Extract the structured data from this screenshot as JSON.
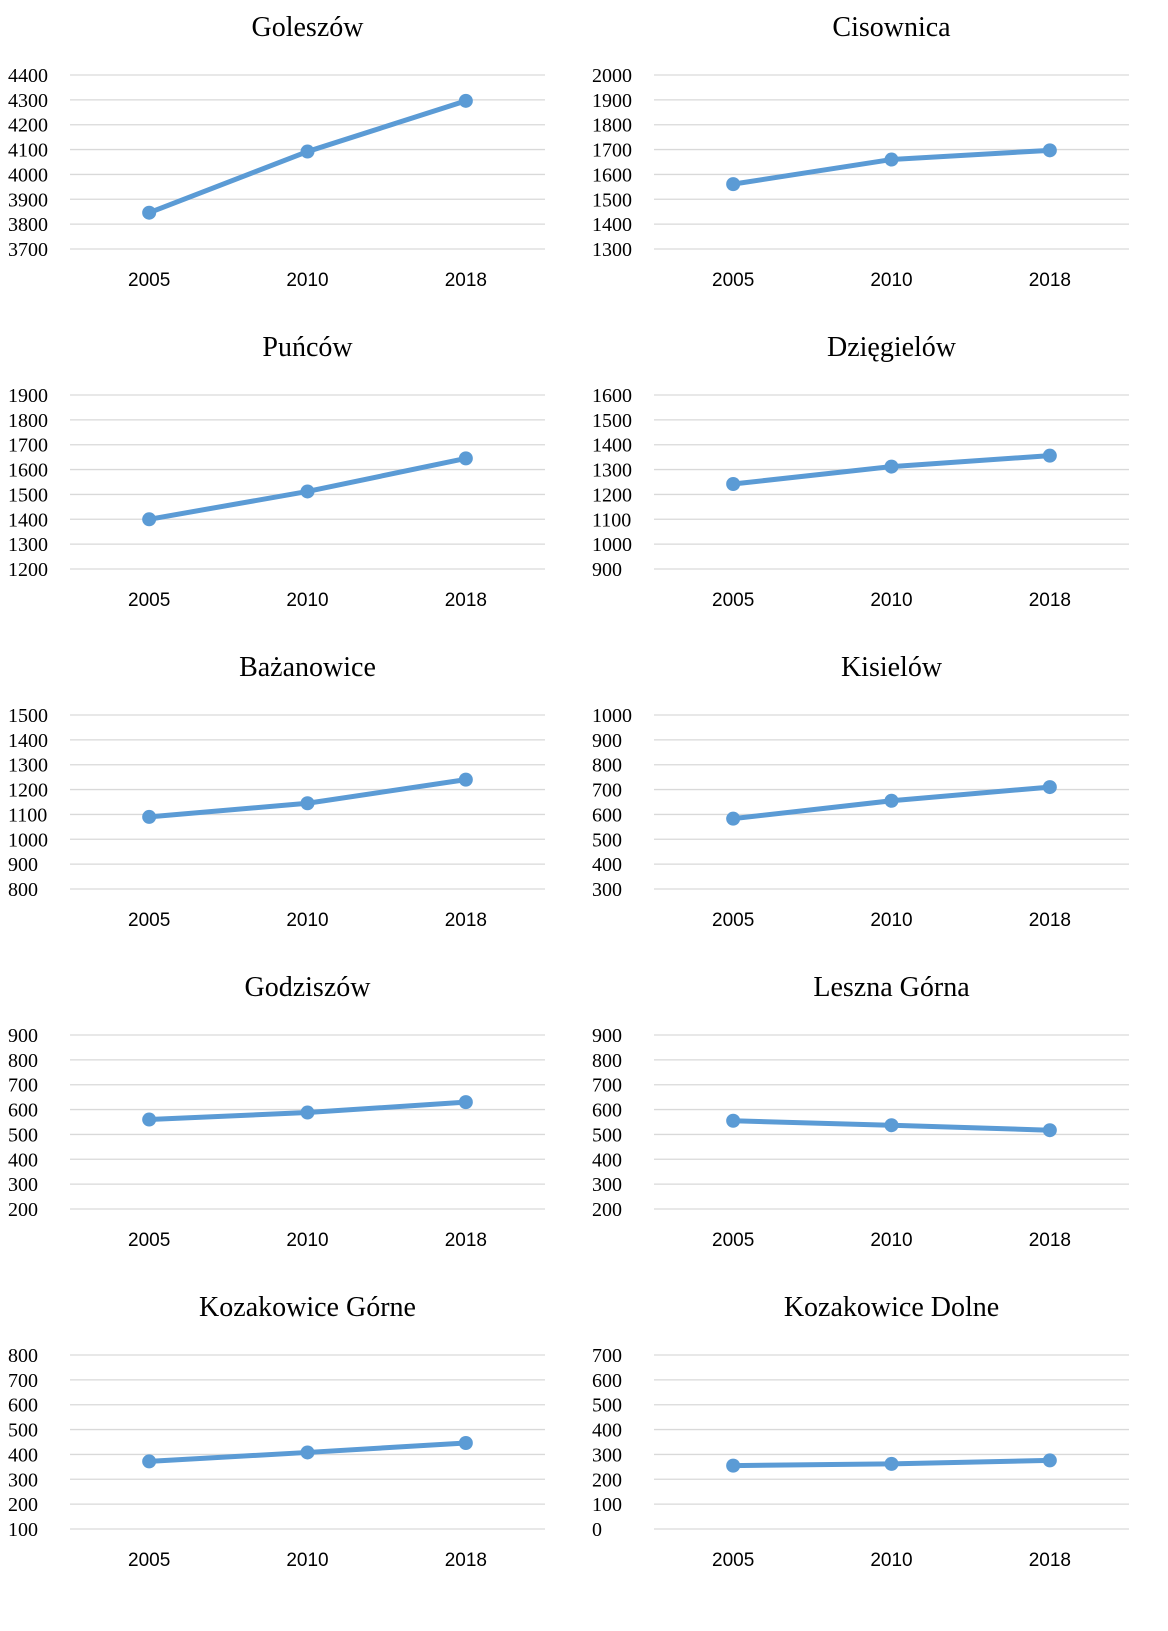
{
  "style": {
    "line_color": "#5B9BD5",
    "grid_color": "#D9D9D9",
    "text_color": "#000000"
  },
  "chart_data": [
    {
      "type": "line",
      "title": "Goleszów",
      "categories": [
        "2005",
        "2010",
        "2018"
      ],
      "values": [
        3846,
        4092,
        4296
      ],
      "ylim": [
        3700,
        4400
      ],
      "ystep": 100,
      "grid": true,
      "legend": "none"
    },
    {
      "type": "line",
      "title": "Cisownica",
      "categories": [
        "2005",
        "2010",
        "2018"
      ],
      "values": [
        1561,
        1660,
        1697
      ],
      "ylim": [
        1300,
        2000
      ],
      "ystep": 100,
      "grid": true,
      "legend": "none"
    },
    {
      "type": "line",
      "title": "Puńców",
      "categories": [
        "2005",
        "2010",
        "2018"
      ],
      "values": [
        1400,
        1512,
        1645
      ],
      "ylim": [
        1200,
        1900
      ],
      "ystep": 100,
      "grid": true,
      "legend": "none"
    },
    {
      "type": "line",
      "title": "Dzięgielów",
      "categories": [
        "2005",
        "2010",
        "2018"
      ],
      "values": [
        1242,
        1312,
        1356
      ],
      "ylim": [
        900,
        1600
      ],
      "ystep": 100,
      "grid": true,
      "legend": "none"
    },
    {
      "type": "line",
      "title": "Bażanowice",
      "categories": [
        "2005",
        "2010",
        "2018"
      ],
      "values": [
        1090,
        1145,
        1240
      ],
      "ylim": [
        800,
        1500
      ],
      "ystep": 100,
      "grid": true,
      "legend": "none"
    },
    {
      "type": "line",
      "title": "Kisielów",
      "categories": [
        "2005",
        "2010",
        "2018"
      ],
      "values": [
        583,
        655,
        710
      ],
      "ylim": [
        300,
        1000
      ],
      "ystep": 100,
      "grid": true,
      "legend": "none"
    },
    {
      "type": "line",
      "title": "Godziszów",
      "categories": [
        "2005",
        "2010",
        "2018"
      ],
      "values": [
        560,
        588,
        630
      ],
      "ylim": [
        200,
        900
      ],
      "ystep": 100,
      "grid": true,
      "legend": "none"
    },
    {
      "type": "line",
      "title": "Leszna Górna",
      "categories": [
        "2005",
        "2010",
        "2018"
      ],
      "values": [
        555,
        537,
        517
      ],
      "ylim": [
        200,
        900
      ],
      "ystep": 100,
      "grid": true,
      "legend": "none"
    },
    {
      "type": "line",
      "title": "Kozakowice Górne",
      "categories": [
        "2005",
        "2010",
        "2018"
      ],
      "values": [
        372,
        408,
        446
      ],
      "ylim": [
        100,
        800
      ],
      "ystep": 100,
      "grid": true,
      "legend": "none"
    },
    {
      "type": "line",
      "title": "Kozakowice Dolne",
      "categories": [
        "2005",
        "2010",
        "2018"
      ],
      "values": [
        255,
        262,
        276
      ],
      "ylim": [
        0,
        700
      ],
      "ystep": 100,
      "grid": true,
      "legend": "none"
    }
  ]
}
